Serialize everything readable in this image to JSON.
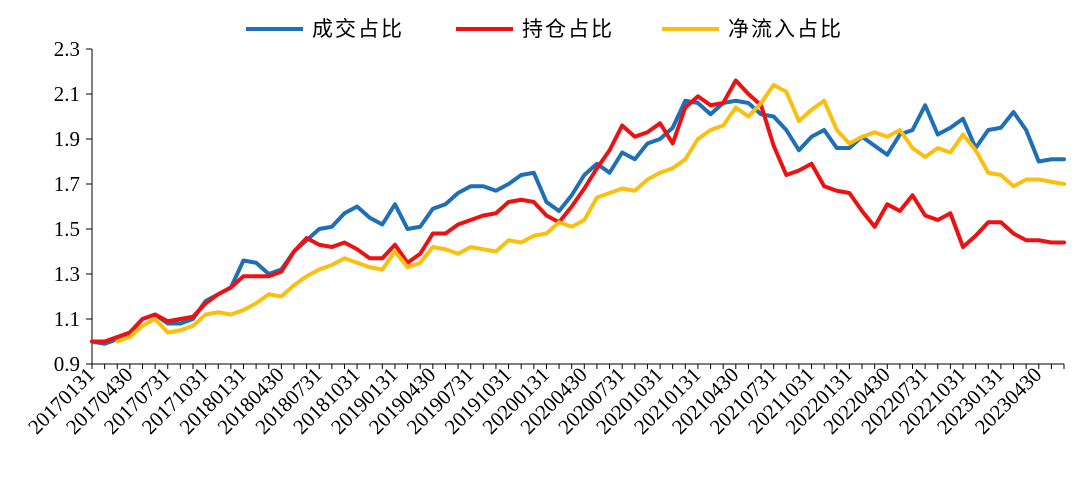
{
  "chart_data": {
    "type": "line",
    "ylim": [
      0.9,
      2.3
    ],
    "y_ticks": [
      "0.9",
      "1.1",
      "1.3",
      "1.5",
      "1.7",
      "1.9",
      "2.1",
      "2.3"
    ],
    "x": [
      "20170131",
      "20170228",
      "20170331",
      "20170430",
      "20170531",
      "20170630",
      "20170731",
      "20170831",
      "20170930",
      "20171031",
      "20171130",
      "20171231",
      "20180131",
      "20180228",
      "20180331",
      "20180430",
      "20180531",
      "20180630",
      "20180731",
      "20180831",
      "20180930",
      "20181031",
      "20181130",
      "20181231",
      "20190131",
      "20190228",
      "20190331",
      "20190430",
      "20190531",
      "20190630",
      "20190731",
      "20190831",
      "20190930",
      "20191031",
      "20191130",
      "20191231",
      "20200131",
      "20200229",
      "20200331",
      "20200430",
      "20200531",
      "20200630",
      "20200731",
      "20200831",
      "20200930",
      "20201031",
      "20201130",
      "20201231",
      "20210131",
      "20210228",
      "20210331",
      "20210430",
      "20210531",
      "20210630",
      "20210731",
      "20210831",
      "20210930",
      "20211031",
      "20211130",
      "20211231",
      "20220131",
      "20220228",
      "20220331",
      "20220430",
      "20220531",
      "20220630",
      "20220731",
      "20220831",
      "20220930",
      "20221031",
      "20221130",
      "20221231",
      "20230131",
      "20230228",
      "20230331",
      "20230430",
      "20230531",
      "20230630"
    ],
    "x_tick_labels": [
      "20170131",
      "20170430",
      "20170731",
      "20171031",
      "20180131",
      "20180430",
      "20180731",
      "20181031",
      "20190131",
      "20190430",
      "20190731",
      "20191031",
      "20200131",
      "20200430",
      "20200731",
      "20201031",
      "20210131",
      "20210430",
      "20210731",
      "20211031",
      "20220131",
      "20220430",
      "20220731",
      "20221031",
      "20230131",
      "20230430"
    ],
    "series": [
      {
        "name": "成交占比",
        "color": "#1f6fb8",
        "values": [
          1.0,
          0.99,
          1.01,
          1.04,
          1.1,
          1.12,
          1.08,
          1.08,
          1.1,
          1.18,
          1.21,
          1.24,
          1.36,
          1.35,
          1.3,
          1.32,
          1.4,
          1.45,
          1.5,
          1.51,
          1.57,
          1.6,
          1.55,
          1.52,
          1.61,
          1.5,
          1.51,
          1.59,
          1.61,
          1.66,
          1.69,
          1.69,
          1.67,
          1.7,
          1.74,
          1.75,
          1.62,
          1.58,
          1.65,
          1.74,
          1.79,
          1.75,
          1.84,
          1.81,
          1.88,
          1.9,
          1.95,
          2.07,
          2.06,
          2.01,
          2.06,
          2.07,
          2.06,
          2.01,
          2.0,
          1.94,
          1.85,
          1.91,
          1.94,
          1.86,
          1.86,
          1.91,
          1.87,
          1.83,
          1.92,
          1.94,
          2.05,
          1.92,
          1.95,
          1.99,
          1.86,
          1.94,
          1.95,
          2.02,
          1.94,
          1.8,
          1.81,
          1.81
        ]
      },
      {
        "name": "持仓占比",
        "color": "#ee1111",
        "values": [
          1.0,
          1.0,
          1.02,
          1.04,
          1.1,
          1.12,
          1.09,
          1.1,
          1.11,
          1.17,
          1.21,
          1.24,
          1.29,
          1.29,
          1.29,
          1.31,
          1.4,
          1.46,
          1.43,
          1.42,
          1.44,
          1.41,
          1.37,
          1.37,
          1.43,
          1.35,
          1.39,
          1.48,
          1.48,
          1.52,
          1.54,
          1.56,
          1.57,
          1.62,
          1.63,
          1.62,
          1.56,
          1.53,
          1.6,
          1.68,
          1.77,
          1.85,
          1.96,
          1.91,
          1.93,
          1.97,
          1.88,
          2.04,
          2.09,
          2.05,
          2.06,
          2.16,
          2.1,
          2.05,
          1.87,
          1.74,
          1.76,
          1.79,
          1.69,
          1.67,
          1.66,
          1.58,
          1.51,
          1.61,
          1.58,
          1.65,
          1.56,
          1.54,
          1.57,
          1.42,
          1.47,
          1.53,
          1.53,
          1.48,
          1.45,
          1.45,
          1.44,
          1.44
        ]
      },
      {
        "name": "净流入占比",
        "color": "#fbbf10",
        "values": [
          null,
          null,
          1.0,
          1.02,
          1.07,
          1.1,
          1.04,
          1.05,
          1.07,
          1.12,
          1.13,
          1.12,
          1.14,
          1.17,
          1.21,
          1.2,
          1.25,
          1.29,
          1.32,
          1.34,
          1.37,
          1.35,
          1.33,
          1.32,
          1.4,
          1.33,
          1.35,
          1.42,
          1.41,
          1.39,
          1.42,
          1.41,
          1.4,
          1.45,
          1.44,
          1.47,
          1.48,
          1.53,
          1.51,
          1.54,
          1.64,
          1.66,
          1.68,
          1.67,
          1.72,
          1.75,
          1.77,
          1.81,
          1.9,
          1.94,
          1.96,
          2.04,
          2.0,
          2.06,
          2.14,
          2.11,
          1.98,
          2.03,
          2.07,
          1.94,
          1.88,
          1.91,
          1.93,
          1.91,
          1.94,
          1.86,
          1.82,
          1.86,
          1.84,
          1.92,
          1.85,
          1.75,
          1.74,
          1.69,
          1.72,
          1.72,
          1.71,
          1.7
        ]
      }
    ]
  }
}
